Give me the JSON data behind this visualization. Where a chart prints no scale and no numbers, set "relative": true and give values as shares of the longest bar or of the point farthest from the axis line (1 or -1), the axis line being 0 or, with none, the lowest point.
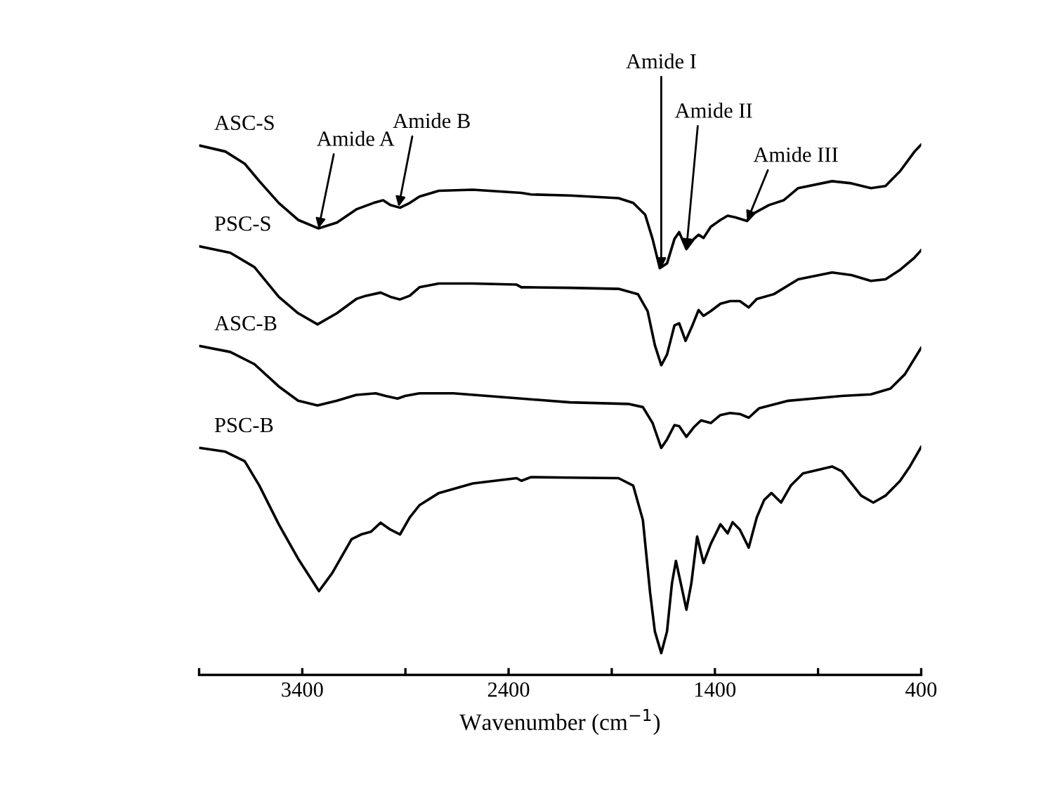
{
  "chart_data": {
    "type": "line",
    "relative": true,
    "xlabel": "Wavenumber (cm$^{−1}$)",
    "xlim": [
      3900,
      400
    ],
    "xticks": [
      {
        "value": 3900,
        "label": null
      },
      3400,
      {
        "value": 2900,
        "label": null
      },
      2400,
      {
        "value": 1900,
        "label": null
      },
      1400,
      {
        "value": 900,
        "label": null
      },
      400
    ],
    "grid": false,
    "marker": "none",
    "line_style": "solid",
    "series": [
      {
        "name": "ASC-S",
        "color": "#000000",
        "x": [
          3895,
          3773,
          3679,
          3608,
          3514,
          3420,
          3321,
          3232,
          3138,
          3055,
          3008,
          2973,
          2926,
          2879,
          2832,
          2738,
          2573,
          2338,
          2291,
          2102,
          1867,
          1796,
          1738,
          1702,
          1667,
          1632,
          1596,
          1573,
          1538,
          1502,
          1479,
          1455,
          1420,
          1373,
          1338,
          1302,
          1244,
          1208,
          1138,
          1067,
          996,
          832,
          738,
          644,
          573,
          502,
          432,
          400
        ],
        "values": [
          0.998,
          0.987,
          0.964,
          0.931,
          0.89,
          0.858,
          0.842,
          0.853,
          0.878,
          0.89,
          0.895,
          0.886,
          0.881,
          0.89,
          0.902,
          0.913,
          0.915,
          0.909,
          0.906,
          0.904,
          0.899,
          0.89,
          0.868,
          0.822,
          0.767,
          0.776,
          0.822,
          0.835,
          0.803,
          0.822,
          0.83,
          0.824,
          0.845,
          0.858,
          0.866,
          0.863,
          0.856,
          0.871,
          0.886,
          0.895,
          0.918,
          0.931,
          0.927,
          0.918,
          0.922,
          0.95,
          0.987,
          1.0
        ]
      },
      {
        "name": "PSC-S",
        "color": "#000000",
        "x": [
          3895,
          3749,
          3632,
          3514,
          3420,
          3326,
          3232,
          3138,
          3091,
          3020,
          2973,
          2926,
          2879,
          2832,
          2738,
          2573,
          2361,
          2338,
          2314,
          2102,
          1867,
          1773,
          1726,
          1691,
          1660,
          1632,
          1596,
          1573,
          1542,
          1509,
          1479,
          1455,
          1420,
          1373,
          1326,
          1279,
          1236,
          1197,
          1114,
          996,
          832,
          738,
          644,
          573,
          502,
          432,
          400
        ],
        "values": [
          0.808,
          0.796,
          0.769,
          0.713,
          0.682,
          0.661,
          0.682,
          0.709,
          0.715,
          0.721,
          0.713,
          0.708,
          0.715,
          0.731,
          0.738,
          0.738,
          0.736,
          0.731,
          0.731,
          0.73,
          0.728,
          0.718,
          0.686,
          0.622,
          0.584,
          0.604,
          0.659,
          0.663,
          0.63,
          0.659,
          0.688,
          0.677,
          0.686,
          0.7,
          0.705,
          0.705,
          0.693,
          0.709,
          0.718,
          0.746,
          0.759,
          0.754,
          0.743,
          0.746,
          0.764,
          0.787,
          0.801
        ]
      },
      {
        "name": "ASC-B",
        "color": "#000000",
        "x": [
          3895,
          3749,
          3632,
          3514,
          3420,
          3326,
          3232,
          3138,
          3044,
          2996,
          2938,
          2902,
          2832,
          2667,
          2338,
          2102,
          1820,
          1749,
          1702,
          1660,
          1632,
          1596,
          1573,
          1538,
          1502,
          1467,
          1420,
          1373,
          1326,
          1279,
          1236,
          1185,
          1044,
          926,
          785,
          644,
          549,
          479,
          400
        ],
        "values": [
          0.62,
          0.609,
          0.586,
          0.544,
          0.517,
          0.508,
          0.517,
          0.528,
          0.531,
          0.526,
          0.521,
          0.526,
          0.531,
          0.531,
          0.521,
          0.514,
          0.511,
          0.505,
          0.475,
          0.428,
          0.444,
          0.471,
          0.469,
          0.449,
          0.467,
          0.48,
          0.475,
          0.49,
          0.494,
          0.492,
          0.485,
          0.503,
          0.517,
          0.521,
          0.526,
          0.529,
          0.54,
          0.567,
          0.617
        ]
      },
      {
        "name": "PSC-B",
        "color": "#000000",
        "x": [
          3895,
          3773,
          3679,
          3608,
          3514,
          3420,
          3319,
          3255,
          3161,
          3114,
          3067,
          3020,
          2973,
          2926,
          2879,
          2832,
          2738,
          2573,
          2361,
          2338,
          2291,
          2102,
          1867,
          1796,
          1749,
          1714,
          1691,
          1660,
          1632,
          1608,
          1589,
          1561,
          1538,
          1514,
          1486,
          1455,
          1420,
          1373,
          1338,
          1314,
          1279,
          1236,
          1197,
          1161,
          1126,
          1079,
          1032,
          973,
          832,
          785,
          691,
          632,
          573,
          502,
          455,
          400
        ],
        "values": [
          0.428,
          0.421,
          0.403,
          0.357,
          0.284,
          0.219,
          0.158,
          0.192,
          0.256,
          0.265,
          0.27,
          0.287,
          0.274,
          0.265,
          0.297,
          0.32,
          0.343,
          0.361,
          0.371,
          0.366,
          0.373,
          0.372,
          0.371,
          0.357,
          0.292,
          0.155,
          0.082,
          0.041,
          0.082,
          0.173,
          0.215,
          0.165,
          0.123,
          0.173,
          0.261,
          0.211,
          0.247,
          0.284,
          0.267,
          0.288,
          0.274,
          0.24,
          0.297,
          0.33,
          0.343,
          0.325,
          0.357,
          0.38,
          0.393,
          0.384,
          0.338,
          0.325,
          0.338,
          0.366,
          0.393,
          0.43
        ]
      }
    ],
    "annotations": [
      {
        "text": "Amide A",
        "x": 3321,
        "y": 0.842
      },
      {
        "text": "Amide B",
        "x": 2933,
        "y": 0.883
      },
      {
        "text": "Amide I",
        "x": 1660,
        "y": 0.767
      },
      {
        "text": "Amide II",
        "x": 1538,
        "y": 0.803
      },
      {
        "text": "Amide III",
        "x": 1244,
        "y": 0.856
      }
    ]
  }
}
